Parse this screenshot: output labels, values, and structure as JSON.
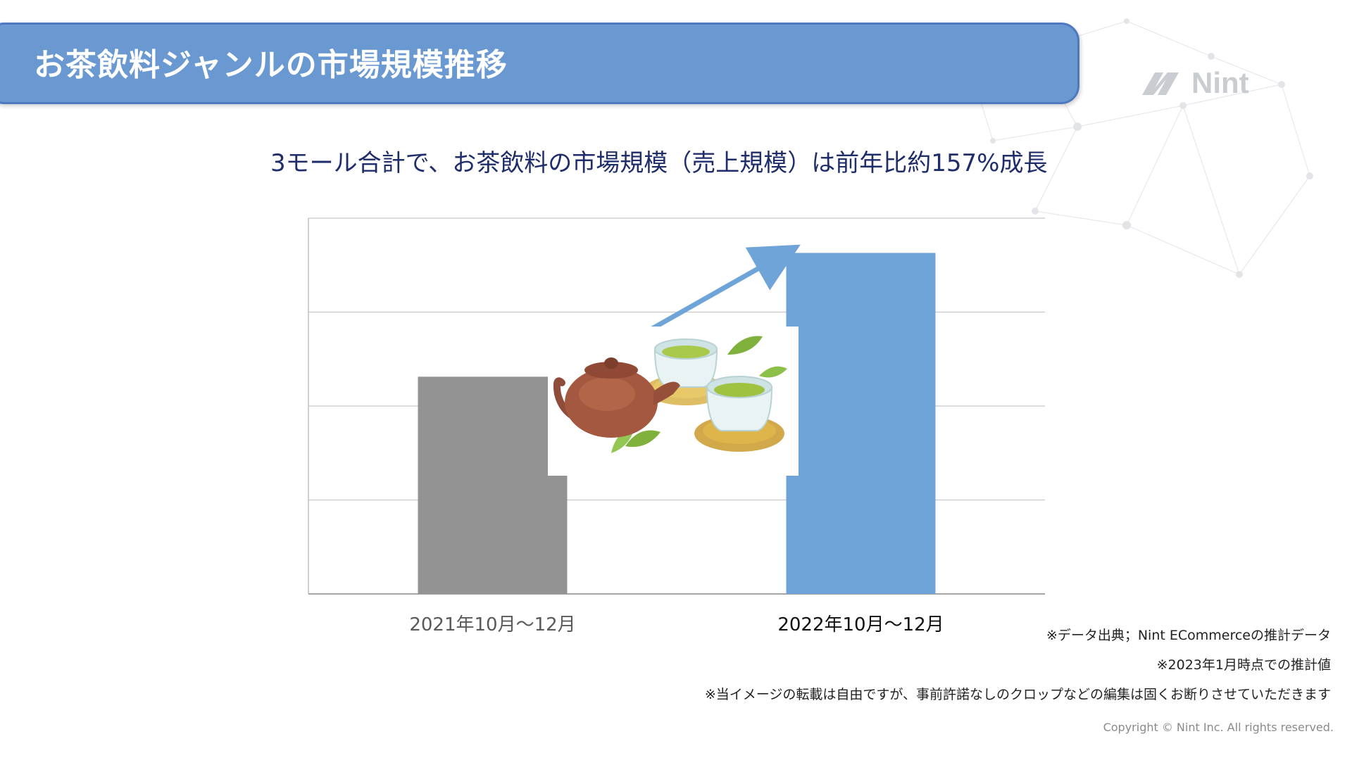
{
  "header": {
    "title": "お茶飲料ジャンルの市場規模推移"
  },
  "logo": {
    "text": "Nint"
  },
  "subtitle": "3モール合計で、お茶飲料の市場規模（売上規模）は前年比約157%成長",
  "chart_data": {
    "type": "bar",
    "categories": [
      "2021年10月～12月",
      "2022年10月～12月"
    ],
    "values": [
      100,
      157
    ],
    "ylim": [
      0,
      173
    ],
    "grid": true,
    "gridlines": 4,
    "bar_colors": [
      "#939393",
      "#6fa4d8"
    ],
    "label_colors": [
      "#5a5a5a",
      "#111111"
    ],
    "arrow_color": "#6fa4d8",
    "title": "",
    "xlabel": "",
    "ylabel": ""
  },
  "illustration": {
    "icon": "teapot-and-teacups-icon"
  },
  "footnotes": {
    "source": "※データ出典；Nint ECommerceの推計データ",
    "as_of": "※2023年1月時点での推計値",
    "usage": "※当イメージの転載は自由ですが、事前許諾なしのクロップなどの編集は固くお断りさせていただきます"
  },
  "copyright": "Copyright © Nint Inc. All rights reserved.",
  "colors": {
    "header_bg": "#6a98d0",
    "subtitle": "#1f2d6b"
  }
}
